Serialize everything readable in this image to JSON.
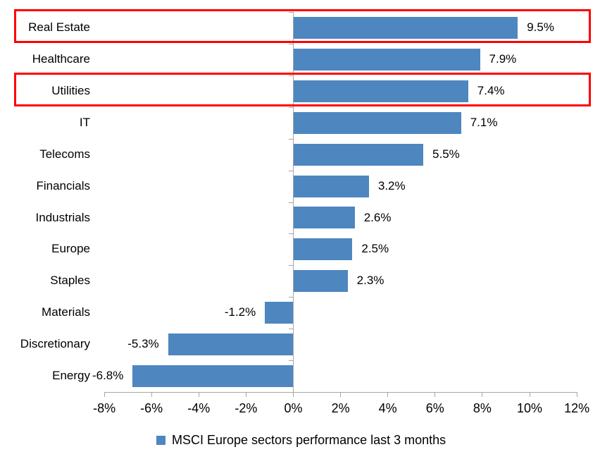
{
  "chart_data": {
    "type": "bar",
    "orientation": "horizontal",
    "title": "",
    "categories": [
      "Real Estate",
      "Healthcare",
      "Utilities",
      "IT",
      "Telecoms",
      "Financials",
      "Industrials",
      "Europe",
      "Staples",
      "Materials",
      "Discretionary",
      "Energy"
    ],
    "values": [
      9.5,
      7.9,
      7.4,
      7.1,
      5.5,
      3.2,
      2.6,
      2.5,
      2.3,
      -1.2,
      -5.3,
      -6.8
    ],
    "value_labels": [
      "9.5%",
      "7.9%",
      "7.4%",
      "7.1%",
      "5.5%",
      "3.2%",
      "2.6%",
      "2.5%",
      "2.3%",
      "-1.2%",
      "-5.3%",
      "-6.8%"
    ],
    "x_axis": {
      "min": -8,
      "max": 12,
      "tick_step": 2,
      "tick_labels": [
        "-8%",
        "-6%",
        "-4%",
        "-2%",
        "0%",
        "2%",
        "4%",
        "6%",
        "8%",
        "10%",
        "12%"
      ]
    },
    "legend": {
      "label": "MSCI Europe sectors performance last 3 months",
      "position": "bottom",
      "marker": "square"
    },
    "highlighted_categories": [
      "Real Estate",
      "Utilities"
    ],
    "colors": {
      "bar": "#4e86c0",
      "axis": "#a6a6a6",
      "highlight_border": "#ff0000",
      "text": "#000000",
      "background": "#ffffff"
    },
    "grid": false
  }
}
